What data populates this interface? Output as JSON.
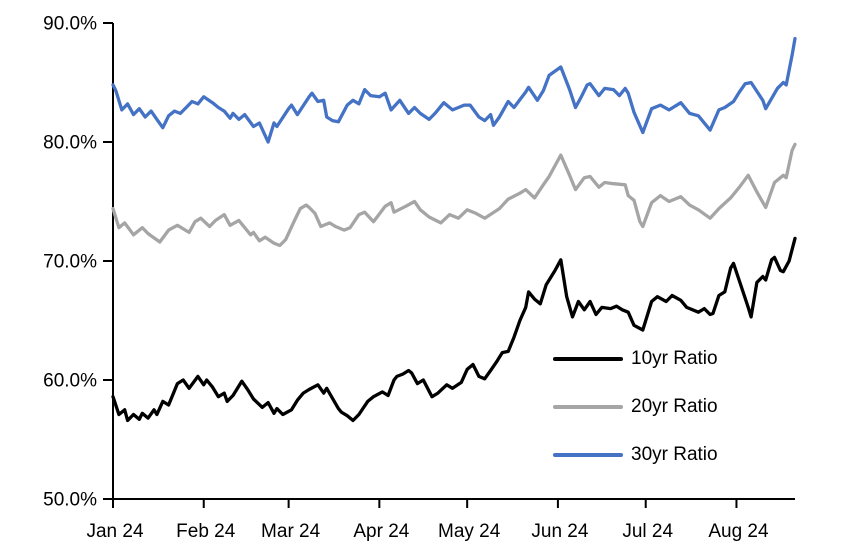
{
  "chart_data": {
    "type": "line",
    "title": "",
    "grid": "off",
    "x_axis": {
      "tick_labels": [
        "Jan 24",
        "Feb 24",
        "Mar 24",
        "Apr 24",
        "May 24",
        "Jun 24",
        "Jul 24",
        "Aug 24"
      ],
      "tick_days": [
        0,
        31,
        60,
        91,
        121,
        152,
        182,
        213
      ],
      "domain_days": [
        0,
        233
      ],
      "unit": "month (2024 daily data)"
    },
    "y_axis": {
      "tick_labels": [
        "50.0%",
        "60.0%",
        "70.0%",
        "80.0%",
        "90.0%"
      ],
      "tick_values": [
        50,
        60,
        70,
        80,
        90
      ],
      "min": 50,
      "max": 90,
      "unit": "percent"
    },
    "legend": {
      "position": "inside-lower-right"
    },
    "series": [
      {
        "name": "10yr Ratio",
        "color": "#000000",
        "points": [
          [
            0,
            58.6
          ],
          [
            2,
            57.1
          ],
          [
            4,
            57.5
          ],
          [
            5,
            56.6
          ],
          [
            7,
            57.1
          ],
          [
            9,
            56.7
          ],
          [
            10,
            57.2
          ],
          [
            12,
            56.8
          ],
          [
            14,
            57.5
          ],
          [
            15,
            57.1
          ],
          [
            17,
            58.2
          ],
          [
            19,
            57.9
          ],
          [
            22,
            59.7
          ],
          [
            24,
            60.0
          ],
          [
            26,
            59.3
          ],
          [
            29,
            60.3
          ],
          [
            31,
            59.6
          ],
          [
            32,
            60.0
          ],
          [
            34,
            59.4
          ],
          [
            36,
            58.6
          ],
          [
            38,
            58.9
          ],
          [
            39,
            58.2
          ],
          [
            41,
            58.7
          ],
          [
            44,
            59.9
          ],
          [
            46,
            59.2
          ],
          [
            48,
            58.4
          ],
          [
            51,
            57.7
          ],
          [
            53,
            58.1
          ],
          [
            55,
            57.2
          ],
          [
            56,
            57.6
          ],
          [
            58,
            57.1
          ],
          [
            61,
            57.5
          ],
          [
            63,
            58.3
          ],
          [
            65,
            58.9
          ],
          [
            67,
            59.2
          ],
          [
            70,
            59.6
          ],
          [
            72,
            58.9
          ],
          [
            73,
            59.3
          ],
          [
            77,
            57.6
          ],
          [
            78,
            57.3
          ],
          [
            80,
            57.0
          ],
          [
            82,
            56.6
          ],
          [
            84,
            57.1
          ],
          [
            87,
            58.2
          ],
          [
            89,
            58.6
          ],
          [
            92,
            59.0
          ],
          [
            94,
            58.7
          ],
          [
            96,
            60.0
          ],
          [
            97,
            60.3
          ],
          [
            99,
            60.5
          ],
          [
            101,
            60.8
          ],
          [
            102,
            60.6
          ],
          [
            104,
            59.7
          ],
          [
            106,
            60.0
          ],
          [
            109,
            58.6
          ],
          [
            111,
            58.9
          ],
          [
            114,
            59.6
          ],
          [
            116,
            59.3
          ],
          [
            119,
            59.8
          ],
          [
            121,
            60.9
          ],
          [
            123,
            61.3
          ],
          [
            125,
            60.3
          ],
          [
            127,
            60.1
          ],
          [
            129,
            60.8
          ],
          [
            131,
            61.5
          ],
          [
            133,
            62.3
          ],
          [
            135,
            62.4
          ],
          [
            137,
            63.6
          ],
          [
            139,
            65.0
          ],
          [
            141,
            66.1
          ],
          [
            142,
            67.4
          ],
          [
            144,
            66.8
          ],
          [
            146,
            66.4
          ],
          [
            148,
            68.0
          ],
          [
            151,
            69.2
          ],
          [
            153,
            70.1
          ],
          [
            155,
            67.0
          ],
          [
            157,
            65.3
          ],
          [
            159,
            66.6
          ],
          [
            161,
            65.9
          ],
          [
            163,
            66.6
          ],
          [
            165,
            65.5
          ],
          [
            167,
            66.1
          ],
          [
            170,
            66.0
          ],
          [
            172,
            66.2
          ],
          [
            174,
            65.9
          ],
          [
            176,
            65.7
          ],
          [
            178,
            64.6
          ],
          [
            181,
            64.2
          ],
          [
            184,
            66.6
          ],
          [
            186,
            67.0
          ],
          [
            189,
            66.6
          ],
          [
            191,
            67.1
          ],
          [
            194,
            66.7
          ],
          [
            196,
            66.1
          ],
          [
            200,
            65.7
          ],
          [
            202,
            66.0
          ],
          [
            204,
            65.5
          ],
          [
            205,
            65.6
          ],
          [
            207,
            67.1
          ],
          [
            209,
            67.4
          ],
          [
            211,
            69.4
          ],
          [
            212,
            69.8
          ],
          [
            215,
            67.6
          ],
          [
            217,
            66.1
          ],
          [
            218,
            65.3
          ],
          [
            220,
            68.2
          ],
          [
            222,
            68.7
          ],
          [
            223,
            68.4
          ],
          [
            225,
            70.1
          ],
          [
            226,
            70.3
          ],
          [
            228,
            69.2
          ],
          [
            229,
            69.1
          ],
          [
            231,
            70.0
          ],
          [
            233,
            71.9
          ]
        ]
      },
      {
        "name": "20yr Ratio",
        "color": "#A5A5A5",
        "points": [
          [
            0,
            74.4
          ],
          [
            2,
            72.8
          ],
          [
            4,
            73.2
          ],
          [
            7,
            72.2
          ],
          [
            10,
            72.8
          ],
          [
            12,
            72.3
          ],
          [
            16,
            71.6
          ],
          [
            19,
            72.6
          ],
          [
            22,
            73.0
          ],
          [
            26,
            72.4
          ],
          [
            28,
            73.3
          ],
          [
            30,
            73.6
          ],
          [
            33,
            72.9
          ],
          [
            35,
            73.4
          ],
          [
            38,
            73.9
          ],
          [
            40,
            73.0
          ],
          [
            43,
            73.4
          ],
          [
            47,
            72.2
          ],
          [
            48,
            72.4
          ],
          [
            50,
            71.7
          ],
          [
            52,
            72.0
          ],
          [
            55,
            71.5
          ],
          [
            57,
            71.3
          ],
          [
            59,
            71.8
          ],
          [
            62,
            73.4
          ],
          [
            64,
            74.4
          ],
          [
            66,
            74.7
          ],
          [
            67,
            74.5
          ],
          [
            69,
            74.0
          ],
          [
            71,
            72.9
          ],
          [
            74,
            73.2
          ],
          [
            76,
            72.9
          ],
          [
            79,
            72.6
          ],
          [
            81,
            72.8
          ],
          [
            84,
            73.9
          ],
          [
            86,
            74.1
          ],
          [
            89,
            73.3
          ],
          [
            93,
            74.6
          ],
          [
            95,
            74.9
          ],
          [
            96,
            74.1
          ],
          [
            100,
            74.6
          ],
          [
            103,
            75.0
          ],
          [
            105,
            74.3
          ],
          [
            108,
            73.7
          ],
          [
            112,
            73.2
          ],
          [
            115,
            73.9
          ],
          [
            118,
            73.6
          ],
          [
            121,
            74.3
          ],
          [
            124,
            74.0
          ],
          [
            127,
            73.6
          ],
          [
            132,
            74.4
          ],
          [
            135,
            75.2
          ],
          [
            139,
            75.7
          ],
          [
            141,
            76.0
          ],
          [
            144,
            75.3
          ],
          [
            147,
            76.4
          ],
          [
            149,
            77.1
          ],
          [
            153,
            78.9
          ],
          [
            156,
            77.2
          ],
          [
            158,
            76.0
          ],
          [
            161,
            77.0
          ],
          [
            163,
            77.1
          ],
          [
            166,
            76.2
          ],
          [
            168,
            76.6
          ],
          [
            171,
            76.5
          ],
          [
            175,
            76.4
          ],
          [
            176,
            75.5
          ],
          [
            178,
            75.1
          ],
          [
            180,
            73.3
          ],
          [
            181,
            72.9
          ],
          [
            184,
            74.9
          ],
          [
            187,
            75.5
          ],
          [
            190,
            75.0
          ],
          [
            194,
            75.4
          ],
          [
            197,
            74.7
          ],
          [
            200,
            74.3
          ],
          [
            204,
            73.6
          ],
          [
            207,
            74.4
          ],
          [
            211,
            75.3
          ],
          [
            214,
            76.2
          ],
          [
            217,
            77.2
          ],
          [
            220,
            75.8
          ],
          [
            223,
            74.5
          ],
          [
            226,
            76.6
          ],
          [
            229,
            77.2
          ],
          [
            230,
            77.0
          ],
          [
            232,
            79.3
          ],
          [
            233,
            79.8
          ]
        ]
      },
      {
        "name": "30yr Ratio",
        "color": "#4472C4",
        "points": [
          [
            0,
            84.8
          ],
          [
            1,
            84.3
          ],
          [
            3,
            82.7
          ],
          [
            5,
            83.2
          ],
          [
            7,
            82.3
          ],
          [
            9,
            82.8
          ],
          [
            11,
            82.1
          ],
          [
            13,
            82.6
          ],
          [
            15,
            81.9
          ],
          [
            17,
            81.2
          ],
          [
            19,
            82.2
          ],
          [
            21,
            82.6
          ],
          [
            23,
            82.4
          ],
          [
            25,
            82.9
          ],
          [
            27,
            83.4
          ],
          [
            29,
            83.2
          ],
          [
            31,
            83.8
          ],
          [
            34,
            83.3
          ],
          [
            36,
            82.9
          ],
          [
            38,
            82.6
          ],
          [
            40,
            82.0
          ],
          [
            41,
            82.4
          ],
          [
            43,
            81.9
          ],
          [
            45,
            82.3
          ],
          [
            48,
            81.3
          ],
          [
            50,
            81.6
          ],
          [
            53,
            80.0
          ],
          [
            55,
            81.6
          ],
          [
            56,
            81.3
          ],
          [
            60,
            82.8
          ],
          [
            61,
            83.1
          ],
          [
            63,
            82.3
          ],
          [
            67,
            83.8
          ],
          [
            68,
            84.1
          ],
          [
            70,
            83.4
          ],
          [
            72,
            83.5
          ],
          [
            73,
            82.1
          ],
          [
            75,
            81.8
          ],
          [
            77,
            81.7
          ],
          [
            80,
            83.1
          ],
          [
            82,
            83.5
          ],
          [
            84,
            83.2
          ],
          [
            86,
            84.4
          ],
          [
            88,
            83.9
          ],
          [
            91,
            83.8
          ],
          [
            93,
            84.1
          ],
          [
            95,
            82.7
          ],
          [
            98,
            83.5
          ],
          [
            101,
            82.4
          ],
          [
            103,
            82.9
          ],
          [
            105,
            82.4
          ],
          [
            108,
            81.9
          ],
          [
            110,
            82.4
          ],
          [
            113,
            83.3
          ],
          [
            116,
            82.7
          ],
          [
            118,
            82.9
          ],
          [
            120,
            83.1
          ],
          [
            122,
            83.1
          ],
          [
            125,
            82.1
          ],
          [
            127,
            81.8
          ],
          [
            129,
            82.3
          ],
          [
            130,
            81.4
          ],
          [
            132,
            82.1
          ],
          [
            135,
            83.4
          ],
          [
            137,
            82.9
          ],
          [
            141,
            84.2
          ],
          [
            142,
            84.6
          ],
          [
            145,
            83.5
          ],
          [
            147,
            84.3
          ],
          [
            149,
            85.6
          ],
          [
            153,
            86.3
          ],
          [
            156,
            84.4
          ],
          [
            158,
            82.9
          ],
          [
            160,
            83.8
          ],
          [
            162,
            84.8
          ],
          [
            163,
            84.9
          ],
          [
            166,
            83.9
          ],
          [
            168,
            84.5
          ],
          [
            171,
            84.4
          ],
          [
            173,
            83.9
          ],
          [
            175,
            84.5
          ],
          [
            176,
            84.1
          ],
          [
            178,
            82.5
          ],
          [
            181,
            80.8
          ],
          [
            184,
            82.8
          ],
          [
            187,
            83.1
          ],
          [
            190,
            82.7
          ],
          [
            194,
            83.3
          ],
          [
            197,
            82.4
          ],
          [
            200,
            82.2
          ],
          [
            204,
            81.0
          ],
          [
            207,
            82.7
          ],
          [
            209,
            82.9
          ],
          [
            212,
            83.4
          ],
          [
            214,
            84.2
          ],
          [
            216,
            84.9
          ],
          [
            218,
            85.0
          ],
          [
            222,
            83.5
          ],
          [
            223,
            82.8
          ],
          [
            227,
            84.5
          ],
          [
            229,
            85.0
          ],
          [
            230,
            84.8
          ],
          [
            232,
            87.3
          ],
          [
            233,
            88.7
          ]
        ]
      }
    ],
    "colors": {
      "axis": "#000000",
      "background": "#FFFFFF"
    }
  }
}
